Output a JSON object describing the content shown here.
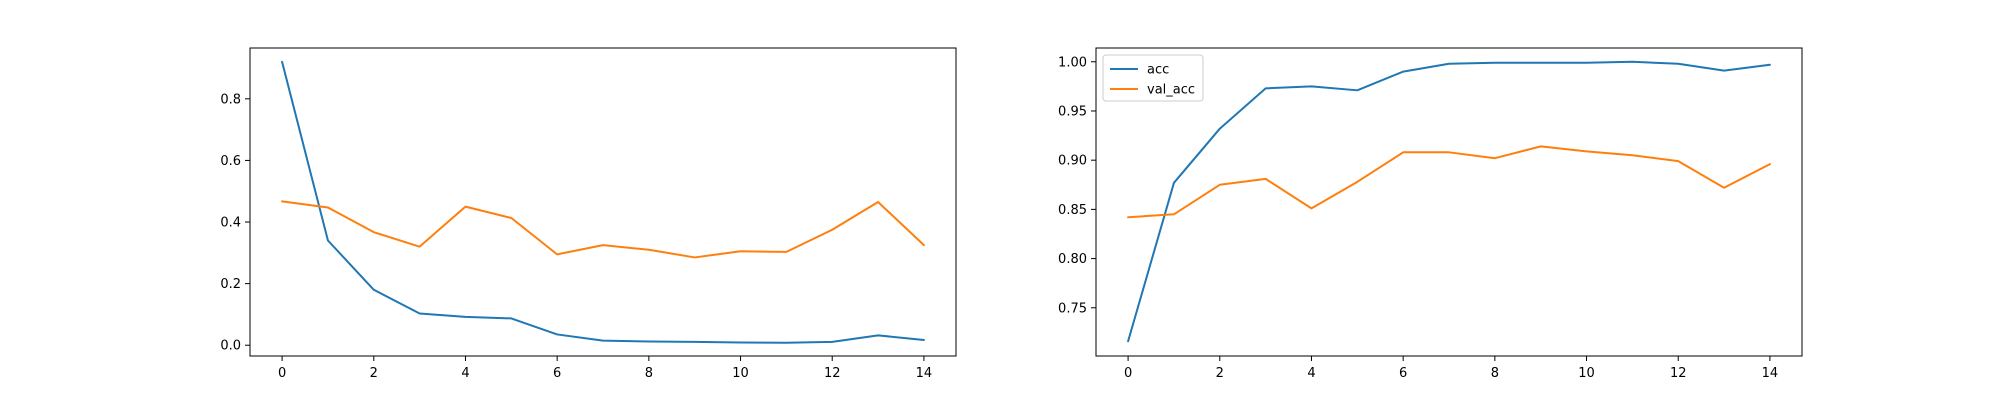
{
  "chart_data": [
    {
      "type": "line",
      "x": [
        0,
        1,
        2,
        3,
        4,
        5,
        6,
        7,
        8,
        9,
        10,
        11,
        12,
        13,
        14
      ],
      "xlim": [
        -0.7,
        14.7
      ],
      "ylim": [
        -0.035,
        0.965
      ],
      "xticks": [
        0,
        2,
        4,
        6,
        8,
        10,
        12,
        14
      ],
      "yticks": [
        0.0,
        0.2,
        0.4,
        0.6,
        0.8
      ],
      "ytick_labels": [
        "0.0",
        "0.2",
        "0.4",
        "0.6",
        "0.8"
      ],
      "grid": false,
      "series": [
        {
          "color": "#1f77b4",
          "values": [
            0.92,
            0.34,
            0.18,
            0.103,
            0.092,
            0.087,
            0.035,
            0.015,
            0.012,
            0.011,
            0.009,
            0.008,
            0.011,
            0.032,
            0.017
          ]
        },
        {
          "color": "#ff7f0e",
          "values": [
            0.467,
            0.447,
            0.367,
            0.32,
            0.45,
            0.413,
            0.295,
            0.325,
            0.31,
            0.285,
            0.305,
            0.303,
            0.375,
            0.465,
            0.325
          ]
        }
      ]
    },
    {
      "type": "line",
      "x": [
        0,
        1,
        2,
        3,
        4,
        5,
        6,
        7,
        8,
        9,
        10,
        11,
        12,
        13,
        14
      ],
      "xlim": [
        -0.7,
        14.7
      ],
      "ylim": [
        0.701,
        1.014
      ],
      "xticks": [
        0,
        2,
        4,
        6,
        8,
        10,
        12,
        14
      ],
      "yticks": [
        0.75,
        0.8,
        0.85,
        0.9,
        0.95,
        1.0
      ],
      "ytick_labels": [
        "0.75",
        "0.80",
        "0.85",
        "0.90",
        "0.95",
        "1.00"
      ],
      "grid": false,
      "legend_position": "top-left",
      "series": [
        {
          "name": "acc",
          "color": "#1f77b4",
          "values": [
            0.716,
            0.877,
            0.932,
            0.973,
            0.975,
            0.971,
            0.99,
            0.998,
            0.999,
            0.999,
            0.999,
            1.0,
            0.998,
            0.991,
            0.997
          ]
        },
        {
          "name": "val_acc",
          "color": "#ff7f0e",
          "values": [
            0.842,
            0.845,
            0.875,
            0.881,
            0.851,
            0.878,
            0.908,
            0.908,
            0.902,
            0.914,
            0.909,
            0.905,
            0.899,
            0.872,
            0.896
          ]
        }
      ]
    }
  ]
}
